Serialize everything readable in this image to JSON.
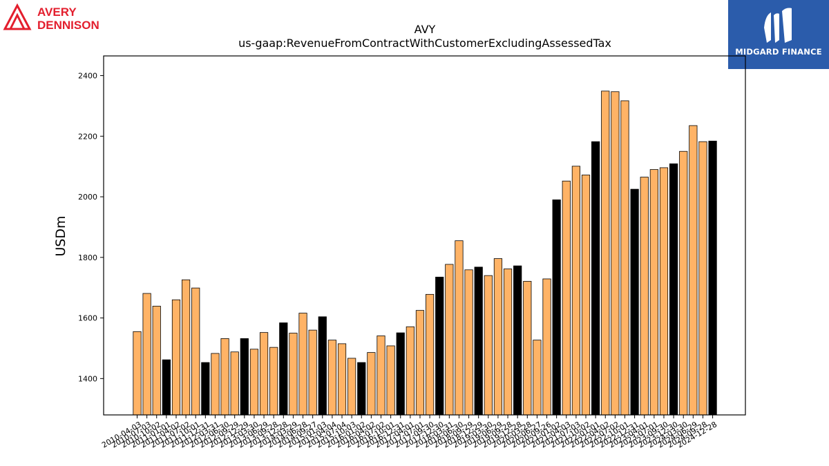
{
  "brand_left": {
    "line1": "AVERY",
    "line2": "DENNISON",
    "color": "#e31e2d"
  },
  "brand_right": {
    "text": "MIDGARD FINANCE",
    "bg_color": "#2b5cab"
  },
  "chart_data": {
    "type": "bar",
    "title": "AVY",
    "subtitle": "us-gaap:RevenueFromContractWithCustomerExcludingAssessedTax",
    "ylabel": "USDm",
    "xlabel": "",
    "ylim": [
      1280,
      2465
    ],
    "yticks": [
      1400,
      1600,
      1800,
      2000,
      2200,
      2400
    ],
    "grid": false,
    "colors": {
      "quarter": "#ffb366",
      "annual": "#000000",
      "edge": "#000000"
    },
    "bars": [
      {
        "date": "2010-04-03",
        "value": 1555,
        "kind": "quarter"
      },
      {
        "date": "2010-07-03",
        "value": 1681,
        "kind": "quarter"
      },
      {
        "date": "2010-10-02",
        "value": 1639,
        "kind": "quarter"
      },
      {
        "date": "2011-01-01",
        "value": 1462,
        "kind": "annual"
      },
      {
        "date": "2011-04-02",
        "value": 1660,
        "kind": "quarter"
      },
      {
        "date": "2011-07-02",
        "value": 1726,
        "kind": "quarter"
      },
      {
        "date": "2011-10-01",
        "value": 1699,
        "kind": "quarter"
      },
      {
        "date": "2011-12-31",
        "value": 1453,
        "kind": "annual"
      },
      {
        "date": "2012-03-31",
        "value": 1483,
        "kind": "quarter"
      },
      {
        "date": "2012-06-30",
        "value": 1532,
        "kind": "quarter"
      },
      {
        "date": "2012-09-29",
        "value": 1488,
        "kind": "quarter"
      },
      {
        "date": "2012-12-29",
        "value": 1532,
        "kind": "annual"
      },
      {
        "date": "2013-03-30",
        "value": 1497,
        "kind": "quarter"
      },
      {
        "date": "2013-06-29",
        "value": 1552,
        "kind": "quarter"
      },
      {
        "date": "2013-09-28",
        "value": 1503,
        "kind": "quarter"
      },
      {
        "date": "2013-12-28",
        "value": 1584,
        "kind": "annual"
      },
      {
        "date": "2014-03-29",
        "value": 1550,
        "kind": "quarter"
      },
      {
        "date": "2014-06-28",
        "value": 1616,
        "kind": "quarter"
      },
      {
        "date": "2014-09-27",
        "value": 1560,
        "kind": "quarter"
      },
      {
        "date": "2015-01-03",
        "value": 1604,
        "kind": "annual"
      },
      {
        "date": "2015-04-04",
        "value": 1527,
        "kind": "quarter"
      },
      {
        "date": "2015-07-04",
        "value": 1515,
        "kind": "quarter"
      },
      {
        "date": "2015-10-03",
        "value": 1467,
        "kind": "quarter"
      },
      {
        "date": "2016-01-02",
        "value": 1453,
        "kind": "annual"
      },
      {
        "date": "2016-04-02",
        "value": 1486,
        "kind": "quarter"
      },
      {
        "date": "2016-07-02",
        "value": 1541,
        "kind": "quarter"
      },
      {
        "date": "2016-10-01",
        "value": 1508,
        "kind": "quarter"
      },
      {
        "date": "2016-12-31",
        "value": 1551,
        "kind": "annual"
      },
      {
        "date": "2017-04-01",
        "value": 1571,
        "kind": "quarter"
      },
      {
        "date": "2017-07-01",
        "value": 1625,
        "kind": "quarter"
      },
      {
        "date": "2017-09-30",
        "value": 1678,
        "kind": "quarter"
      },
      {
        "date": "2017-12-30",
        "value": 1735,
        "kind": "annual"
      },
      {
        "date": "2018-03-31",
        "value": 1777,
        "kind": "quarter"
      },
      {
        "date": "2018-06-30",
        "value": 1855,
        "kind": "quarter"
      },
      {
        "date": "2018-09-29",
        "value": 1759,
        "kind": "quarter"
      },
      {
        "date": "2018-12-29",
        "value": 1768,
        "kind": "annual"
      },
      {
        "date": "2019-03-30",
        "value": 1740,
        "kind": "quarter"
      },
      {
        "date": "2019-06-29",
        "value": 1796,
        "kind": "quarter"
      },
      {
        "date": "2019-09-28",
        "value": 1762,
        "kind": "quarter"
      },
      {
        "date": "2019-12-28",
        "value": 1772,
        "kind": "annual"
      },
      {
        "date": "2020-03-28",
        "value": 1721,
        "kind": "quarter"
      },
      {
        "date": "2020-06-27",
        "value": 1527,
        "kind": "quarter"
      },
      {
        "date": "2020-09-26",
        "value": 1729,
        "kind": "quarter"
      },
      {
        "date": "2021-01-02",
        "value": 1990,
        "kind": "annual"
      },
      {
        "date": "2021-04-03",
        "value": 2052,
        "kind": "quarter"
      },
      {
        "date": "2021-07-03",
        "value": 2101,
        "kind": "quarter"
      },
      {
        "date": "2021-10-02",
        "value": 2072,
        "kind": "quarter"
      },
      {
        "date": "2022-01-01",
        "value": 2182,
        "kind": "annual"
      },
      {
        "date": "2022-04-02",
        "value": 2349,
        "kind": "quarter"
      },
      {
        "date": "2022-07-02",
        "value": 2347,
        "kind": "quarter"
      },
      {
        "date": "2022-10-01",
        "value": 2317,
        "kind": "quarter"
      },
      {
        "date": "2022-12-31",
        "value": 2025,
        "kind": "annual"
      },
      {
        "date": "2023-04-01",
        "value": 2065,
        "kind": "quarter"
      },
      {
        "date": "2023-07-01",
        "value": 2090,
        "kind": "quarter"
      },
      {
        "date": "2023-09-30",
        "value": 2096,
        "kind": "quarter"
      },
      {
        "date": "2023-12-30",
        "value": 2109,
        "kind": "annual"
      },
      {
        "date": "2024-03-30",
        "value": 2150,
        "kind": "quarter"
      },
      {
        "date": "2024-06-29",
        "value": 2235,
        "kind": "quarter"
      },
      {
        "date": "2024-09-28",
        "value": 2182,
        "kind": "quarter"
      },
      {
        "date": "2024-12-28",
        "value": 2184,
        "kind": "annual"
      }
    ]
  }
}
